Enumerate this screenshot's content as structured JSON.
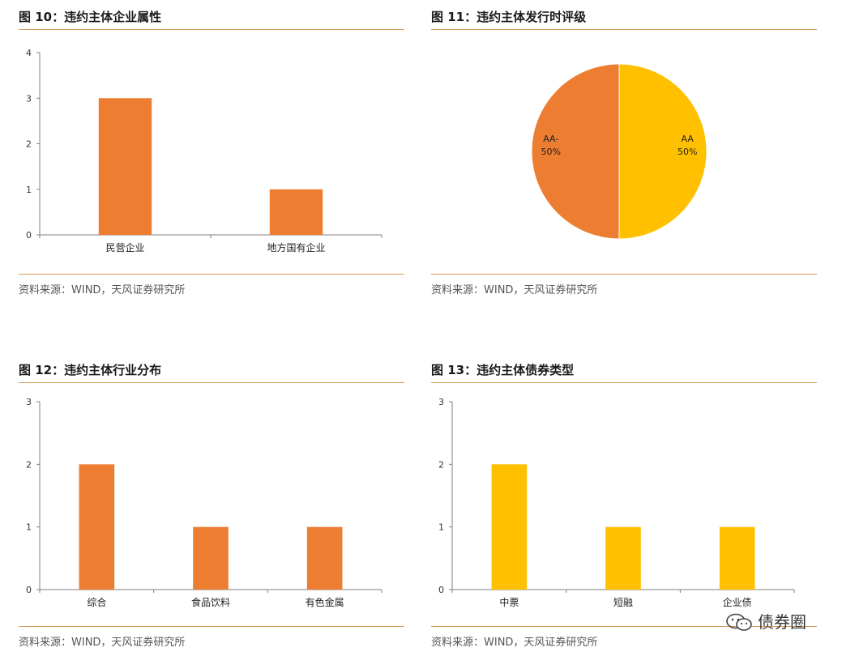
{
  "panels": [
    {
      "title": "图 10：违约主体企业属性",
      "source": "资料来源：WIND，天风证券研究所"
    },
    {
      "title": "图 11：违约主体发行时评级",
      "source": "资料来源：WIND，天风证券研究所"
    },
    {
      "title": "图 12：违约主体行业分布",
      "source": "资料来源：WIND，天风证券研究所"
    },
    {
      "title": "图 13：违约主体债券类型",
      "source": "资料来源：WIND，天风证券研究所"
    }
  ],
  "watermark": {
    "text": "债券圈",
    "icon": "wechat-icon"
  },
  "colors": {
    "orange": "#ED7D31",
    "gold": "#FFC000",
    "rule": "#D59A55",
    "axis": "#7f7f7f"
  },
  "chart_data": [
    {
      "type": "bar",
      "title": "",
      "categories": [
        "民营企业",
        "地方国有企业"
      ],
      "values": [
        3,
        1
      ],
      "ylim": [
        0,
        4
      ],
      "yticks": [
        0,
        1,
        2,
        3,
        4
      ],
      "color": "#ED7D31",
      "grid": false
    },
    {
      "type": "pie",
      "title": "",
      "labels": [
        "AA",
        "AA-"
      ],
      "values": [
        50,
        50
      ],
      "value_labels": [
        "50%",
        "50%"
      ],
      "colors": [
        "#FFC000",
        "#ED7D31"
      ]
    },
    {
      "type": "bar",
      "title": "",
      "categories": [
        "综合",
        "食品饮料",
        "有色金属"
      ],
      "values": [
        2,
        1,
        1
      ],
      "ylim": [
        0,
        3
      ],
      "yticks": [
        0,
        1,
        2,
        3
      ],
      "color": "#ED7D31",
      "grid": false
    },
    {
      "type": "bar",
      "title": "",
      "categories": [
        "中票",
        "短融",
        "企业债"
      ],
      "values": [
        2,
        1,
        1
      ],
      "ylim": [
        0,
        3
      ],
      "yticks": [
        0,
        1,
        2,
        3
      ],
      "color": "#FFC000",
      "grid": false
    }
  ]
}
